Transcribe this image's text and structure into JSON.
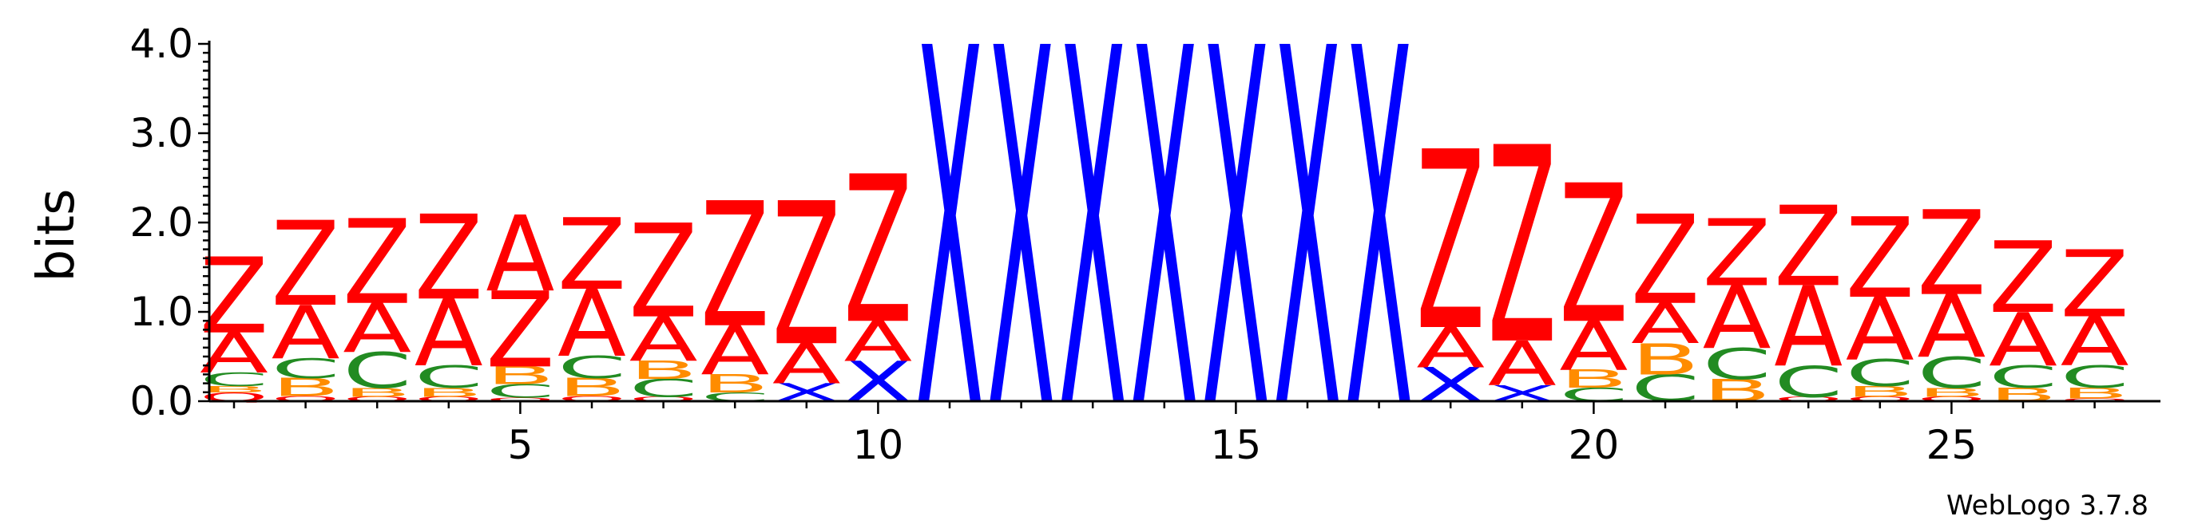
{
  "chart_data": {
    "type": "sequence-logo",
    "ylabel": "bits",
    "ylim": [
      0,
      4.0
    ],
    "y_ticks": [
      "0.0",
      "1.0",
      "2.0",
      "3.0",
      "4.0"
    ],
    "x_ticks": [
      5,
      10,
      15,
      20,
      25
    ],
    "x_range": [
      1,
      27
    ],
    "credit": "WebLogo 3.7.8",
    "colors": {
      "Z": "#ff0000",
      "A": "#ff0000",
      "X": "#0000ff",
      "C": "#228b22",
      "B": "#ff8c00",
      "Q": "#ff0000"
    },
    "positions": [
      {
        "pos": 1,
        "stack": [
          [
            "Q",
            0.1
          ],
          [
            "B",
            0.07
          ],
          [
            "C",
            0.15
          ],
          [
            "A",
            0.45
          ],
          [
            "Z",
            0.85
          ]
        ]
      },
      {
        "pos": 2,
        "stack": [
          [
            "Q",
            0.06
          ],
          [
            "B",
            0.2
          ],
          [
            "C",
            0.22
          ],
          [
            "A",
            0.6
          ],
          [
            "Z",
            0.95
          ]
        ]
      },
      {
        "pos": 3,
        "stack": [
          [
            "Q",
            0.05
          ],
          [
            "B",
            0.1
          ],
          [
            "C",
            0.4
          ],
          [
            "A",
            0.55
          ],
          [
            "Z",
            0.95
          ]
        ]
      },
      {
        "pos": 4,
        "stack": [
          [
            "Q",
            0.05
          ],
          [
            "B",
            0.1
          ],
          [
            "C",
            0.25
          ],
          [
            "A",
            0.75
          ],
          [
            "Z",
            0.95
          ]
        ]
      },
      {
        "pos": 5,
        "stack": [
          [
            "Q",
            0.04
          ],
          [
            "C",
            0.15
          ],
          [
            "B",
            0.2
          ],
          [
            "Z",
            0.85
          ],
          [
            "A",
            0.85
          ]
        ]
      },
      {
        "pos": 6,
        "stack": [
          [
            "Q",
            0.06
          ],
          [
            "B",
            0.2
          ],
          [
            "C",
            0.25
          ],
          [
            "A",
            0.75
          ],
          [
            "Z",
            0.8
          ]
        ]
      },
      {
        "pos": 7,
        "stack": [
          [
            "Q",
            0.05
          ],
          [
            "C",
            0.2
          ],
          [
            "B",
            0.2
          ],
          [
            "A",
            0.5
          ],
          [
            "Z",
            1.05
          ]
        ]
      },
      {
        "pos": 8,
        "stack": [
          [
            "C",
            0.1
          ],
          [
            "B",
            0.2
          ],
          [
            "A",
            0.55
          ],
          [
            "Z",
            1.4
          ]
        ]
      },
      {
        "pos": 9,
        "stack": [
          [
            "X",
            0.2
          ],
          [
            "A",
            0.45
          ],
          [
            "Z",
            1.6
          ]
        ]
      },
      {
        "pos": 10,
        "stack": [
          [
            "X",
            0.45
          ],
          [
            "A",
            0.45
          ],
          [
            "Z",
            1.65
          ]
        ]
      },
      {
        "pos": 11,
        "stack": [
          [
            "X",
            4.0
          ]
        ]
      },
      {
        "pos": 12,
        "stack": [
          [
            "X",
            4.0
          ]
        ]
      },
      {
        "pos": 13,
        "stack": [
          [
            "X",
            4.0
          ]
        ]
      },
      {
        "pos": 14,
        "stack": [
          [
            "X",
            4.0
          ]
        ]
      },
      {
        "pos": 15,
        "stack": [
          [
            "X",
            4.0
          ]
        ]
      },
      {
        "pos": 16,
        "stack": [
          [
            "X",
            4.0
          ]
        ]
      },
      {
        "pos": 17,
        "stack": [
          [
            "X",
            4.0
          ]
        ]
      },
      {
        "pos": 18,
        "stack": [
          [
            "X",
            0.38
          ],
          [
            "A",
            0.45
          ],
          [
            "Z",
            2.0
          ]
        ]
      },
      {
        "pos": 19,
        "stack": [
          [
            "X",
            0.18
          ],
          [
            "A",
            0.5
          ],
          [
            "Z",
            2.2
          ]
        ]
      },
      {
        "pos": 20,
        "stack": [
          [
            "C",
            0.15
          ],
          [
            "B",
            0.2
          ],
          [
            "A",
            0.55
          ],
          [
            "Z",
            1.55
          ]
        ]
      },
      {
        "pos": 21,
        "stack": [
          [
            "C",
            0.3
          ],
          [
            "B",
            0.35
          ],
          [
            "A",
            0.45
          ],
          [
            "Z",
            1.0
          ]
        ]
      },
      {
        "pos": 22,
        "stack": [
          [
            "B",
            0.25
          ],
          [
            "C",
            0.35
          ],
          [
            "A",
            0.7
          ],
          [
            "Z",
            0.75
          ]
        ]
      },
      {
        "pos": 23,
        "stack": [
          [
            "Q",
            0.05
          ],
          [
            "C",
            0.35
          ],
          [
            "A",
            0.9
          ],
          [
            "Z",
            0.9
          ]
        ]
      },
      {
        "pos": 24,
        "stack": [
          [
            "Q",
            0.05
          ],
          [
            "B",
            0.12
          ],
          [
            "C",
            0.3
          ],
          [
            "A",
            0.7
          ],
          [
            "Z",
            0.9
          ]
        ]
      },
      {
        "pos": 25,
        "stack": [
          [
            "Q",
            0.05
          ],
          [
            "B",
            0.1
          ],
          [
            "C",
            0.35
          ],
          [
            "A",
            0.7
          ],
          [
            "Z",
            0.95
          ]
        ]
      },
      {
        "pos": 26,
        "stack": [
          [
            "B",
            0.15
          ],
          [
            "C",
            0.25
          ],
          [
            "A",
            0.6
          ],
          [
            "Z",
            0.8
          ]
        ]
      },
      {
        "pos": 27,
        "stack": [
          [
            "Q",
            0.03
          ],
          [
            "B",
            0.12
          ],
          [
            "C",
            0.25
          ],
          [
            "A",
            0.55
          ],
          [
            "Z",
            0.75
          ]
        ]
      }
    ]
  }
}
